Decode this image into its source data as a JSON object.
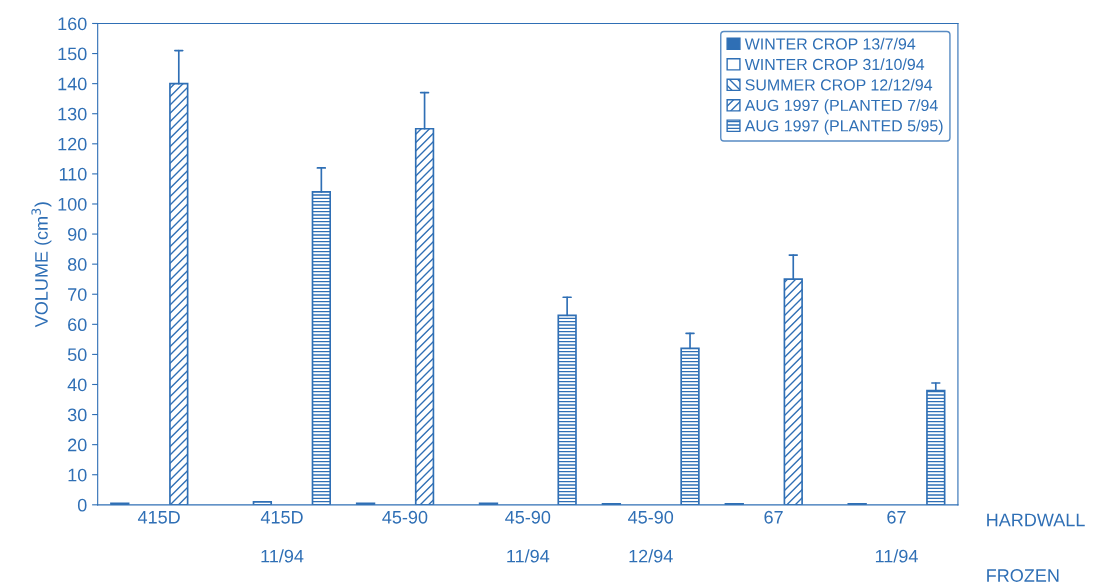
{
  "chart_data": {
    "type": "bar",
    "ylabel": "VOLUME (cm$^{3}$)",
    "categories": [
      "415D\n\n",
      "415D\n\n11/94",
      "45-90\n\n",
      "45-90\n\n11/94",
      "45-90\n\n12/94",
      "67\n\n",
      "67\n\n11/94"
    ],
    "series": [
      {
        "name": "WINTER CROP 13/7/94",
        "color": "#2f6fb5",
        "values": [
          0.5,
          null,
          0.5,
          0.5,
          0.3,
          0.3,
          0.3
        ]
      },
      {
        "name": "WINTER CROP 31/10/94",
        "color": "#ffffff",
        "values": [
          null,
          1,
          null,
          null,
          null,
          null,
          null
        ]
      },
      {
        "name": "SUMMER CROP 12/12/94",
        "color": "#2f6fb5",
        "values": [
          null,
          null,
          null,
          null,
          null,
          null,
          null
        ]
      },
      {
        "name": "AUG 1997 (PLANTED 7/94",
        "color": "#2f6fb5",
        "values": [
          140,
          null,
          125,
          null,
          null,
          75,
          null
        ],
        "errors": [
          [
            140,
            151
          ],
          null,
          [
            125,
            137
          ],
          null,
          null,
          [
            75,
            83
          ],
          null
        ]
      },
      {
        "name": "AUG 1997 (PLANTED 5/95)",
        "color": "#2f6fb5",
        "values": [
          null,
          104,
          null,
          63,
          52,
          null,
          38
        ],
        "errors": [
          null,
          [
            104,
            112
          ],
          null,
          [
            63,
            69
          ],
          [
            52,
            57
          ],
          null,
          [
            38,
            40.5
          ]
        ]
      }
    ],
    "ylim": [
      0,
      160
    ],
    "yticks": [
      0,
      10,
      20,
      30,
      40,
      50,
      60,
      70,
      80,
      90,
      100,
      110,
      120,
      130,
      140,
      150,
      160
    ],
    "legend": "top right",
    "grid": false,
    "annotations": [
      "HARDWALL",
      "FROZEN"
    ]
  }
}
